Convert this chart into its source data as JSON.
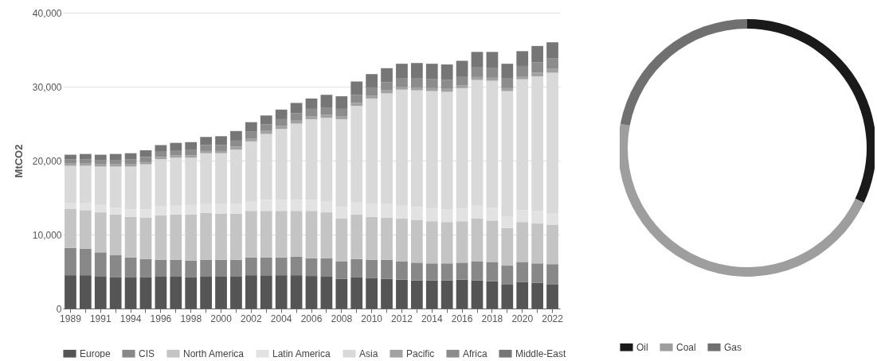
{
  "chart_data": [
    {
      "type": "bar",
      "stacked": true,
      "ylabel": "MtCO2",
      "grid": "y",
      "legend": "bottom",
      "categories": [
        "1989",
        null,
        "1991",
        null,
        "1994",
        null,
        "1996",
        null,
        "1998",
        null,
        "2000",
        null,
        "2002",
        null,
        "2004",
        null,
        "2006",
        null,
        "2008",
        null,
        "2010",
        null,
        "2012",
        null,
        "2014",
        null,
        "2016",
        null,
        "2018",
        null,
        "2020",
        null,
        "2022"
      ],
      "ylim": [
        0,
        40000
      ],
      "yticks": [
        0,
        {
          "value": 10000,
          "label": "10,000"
        },
        {
          "value": 20000,
          "label": "20,000"
        },
        {
          "value": 30000,
          "label": "30,000"
        },
        {
          "value": 40000,
          "label": "40,000"
        }
      ],
      "series": [
        {
          "name": "Europe",
          "color": "#555555",
          "values": [
            4500,
            4500,
            4300,
            4200,
            4200,
            4200,
            4300,
            4300,
            4200,
            4300,
            4300,
            4300,
            4500,
            4500,
            4500,
            4500,
            4400,
            4300,
            4000,
            4200,
            4100,
            4000,
            3900,
            3800,
            3800,
            3800,
            3900,
            3800,
            3700,
            3300,
            3600,
            3500,
            3300
          ]
        },
        {
          "name": "CIS",
          "color": "#888888",
          "values": [
            3700,
            3600,
            3300,
            3000,
            2700,
            2500,
            2300,
            2300,
            2300,
            2300,
            2300,
            2300,
            2400,
            2400,
            2400,
            2500,
            2400,
            2500,
            2400,
            2500,
            2500,
            2600,
            2500,
            2400,
            2300,
            2300,
            2300,
            2600,
            2600,
            2500,
            2700,
            2600,
            2700
          ]
        },
        {
          "name": "North America",
          "color": "#c4c4c4",
          "values": [
            5300,
            5200,
            5400,
            5500,
            5500,
            5600,
            6000,
            6100,
            6200,
            6300,
            6200,
            6200,
            6300,
            6300,
            6300,
            6200,
            6400,
            6200,
            5800,
            6000,
            5800,
            5700,
            5800,
            5800,
            5700,
            5600,
            5600,
            5800,
            5600,
            5100,
            5400,
            5400,
            5300
          ]
        },
        {
          "name": "Latin America",
          "color": "#e2e2e2",
          "values": [
            800,
            1000,
            1000,
            900,
            1000,
            1100,
            1200,
            1200,
            1300,
            1300,
            1300,
            1400,
            1300,
            1500,
            1500,
            1500,
            1500,
            1500,
            1500,
            1700,
            1700,
            1800,
            1700,
            1700,
            1700,
            1700,
            1700,
            1700,
            1700,
            1500,
            1600,
            1700,
            1600
          ]
        },
        {
          "name": "Asia",
          "color": "#d9d9d9",
          "values": [
            5000,
            5000,
            5200,
            5600,
            5800,
            6100,
            6400,
            6500,
            6400,
            6800,
            6900,
            7300,
            8100,
            8900,
            9600,
            10300,
            10900,
            11300,
            11900,
            13000,
            14300,
            15000,
            15700,
            15800,
            15900,
            15900,
            16300,
            17000,
            17200,
            17000,
            17700,
            18200,
            19000
          ]
        },
        {
          "name": "Pacific",
          "color": "#a2a2a2",
          "values": [
            300,
            300,
            300,
            300,
            300,
            300,
            300,
            300,
            300,
            300,
            300,
            400,
            400,
            400,
            400,
            400,
            400,
            400,
            400,
            400,
            400,
            400,
            400,
            400,
            400,
            400,
            400,
            400,
            400,
            400,
            400,
            500,
            500
          ]
        },
        {
          "name": "Africa",
          "color": "#8c8c8c",
          "values": [
            600,
            600,
            600,
            600,
            700,
            700,
            700,
            700,
            800,
            800,
            800,
            800,
            900,
            900,
            900,
            1000,
            1000,
            1000,
            1000,
            1100,
            1100,
            1100,
            1100,
            1200,
            1200,
            1200,
            1200,
            1300,
            1300,
            1300,
            1400,
            1400,
            1400
          ]
        },
        {
          "name": "Middle-East",
          "color": "#767676",
          "values": [
            600,
            700,
            700,
            800,
            800,
            900,
            900,
            1000,
            1000,
            1100,
            1200,
            1300,
            1300,
            1200,
            1300,
            1400,
            1400,
            1700,
            1700,
            1800,
            1800,
            1900,
            2000,
            2100,
            2100,
            2100,
            2100,
            2100,
            2200,
            2000,
            2000,
            2200,
            2200
          ]
        }
      ]
    },
    {
      "type": "donut",
      "legend": "bottom",
      "categories": [
        "Oil",
        "Coal",
        "Gas"
      ],
      "values": [
        32,
        46,
        22
      ],
      "colors": [
        "#1a1a1a",
        "#9e9e9e",
        "#707070"
      ]
    }
  ]
}
